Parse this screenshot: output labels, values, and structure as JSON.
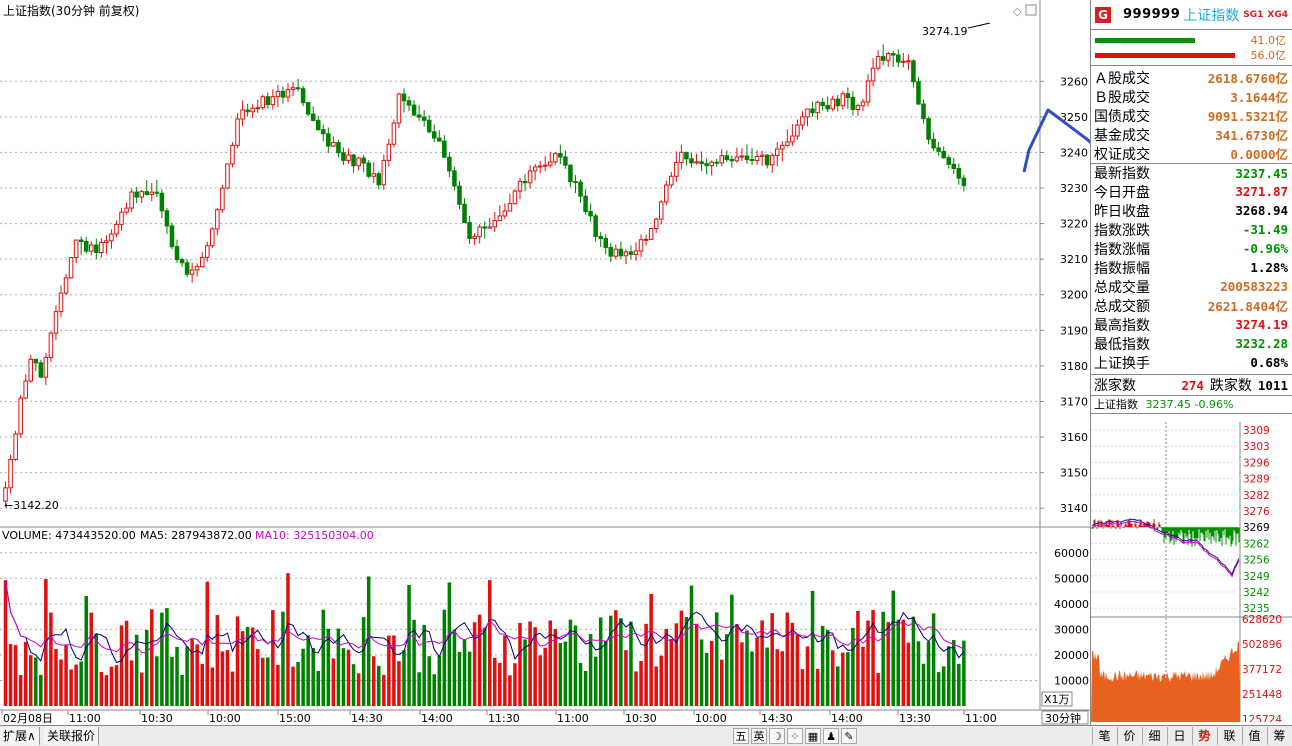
{
  "chart_title": "上证指数(30分钟 前复权)",
  "annotations": {
    "high_label": "3274.19",
    "low_label": "←3142.20"
  },
  "price_axis": [
    "3260",
    "3250",
    "3240",
    "3230",
    "3220",
    "3210",
    "3200",
    "3190",
    "3180",
    "3170",
    "3160",
    "3150",
    "3140"
  ],
  "volume_header": {
    "volume": "VOLUME: 473443520.00",
    "ma5": "MA5: 287943872.00",
    "ma10": "MA10: 325150304.00"
  },
  "volume_axis": [
    "60000",
    "50000",
    "40000",
    "30000",
    "20000",
    "10000"
  ],
  "volume_unit": "X1万",
  "time_axis": [
    "02月08日",
    "11:00",
    "10:30",
    "10:00",
    "15:00",
    "14:30",
    "14:00",
    "11:30",
    "11:00",
    "10:30",
    "10:00",
    "14:30",
    "14:00",
    "13:30",
    "11:00"
  ],
  "period_label": "30分钟",
  "side": {
    "code": "999999",
    "name": "上证指数",
    "badge1": "SG1",
    "badge2": "XG4",
    "buy_vol": "41.0亿",
    "sell_vol": "56.0亿",
    "stats": [
      {
        "label": "Ａ股成交",
        "value": "2618.6760亿",
        "color": "orange"
      },
      {
        "label": "Ｂ股成交",
        "value": "3.1644亿",
        "color": "orange"
      },
      {
        "label": "国债成交",
        "value": "9091.5321亿",
        "color": "orange"
      },
      {
        "label": "基金成交",
        "value": "341.6730亿",
        "color": "orange"
      },
      {
        "label": "权证成交",
        "value": "0.0000亿",
        "color": "orange"
      },
      {
        "label": "最新指数",
        "value": "3237.45",
        "color": "green"
      },
      {
        "label": "今日开盘",
        "value": "3271.87",
        "color": "red"
      },
      {
        "label": "昨日收盘",
        "value": "3268.94",
        "color": "black"
      },
      {
        "label": "指数涨跌",
        "value": "-31.49",
        "color": "green"
      },
      {
        "label": "指数涨幅",
        "value": "-0.96%",
        "color": "green"
      },
      {
        "label": "指数振幅",
        "value": "1.28%",
        "color": "black"
      },
      {
        "label": "总成交量",
        "value": "200583223",
        "color": "orange"
      },
      {
        "label": "总成交额",
        "value": "2621.8404亿",
        "color": "orange"
      },
      {
        "label": "最高指数",
        "value": "3274.19",
        "color": "red"
      },
      {
        "label": "最低指数",
        "value": "3232.28",
        "color": "green"
      },
      {
        "label": "上证换手",
        "value": "0.68%",
        "color": "black"
      }
    ],
    "up_label": "涨家数",
    "up_count": "274",
    "down_label": "跌家数",
    "down_count": "1011",
    "mini_title": "上证指数",
    "mini_value": "3237.45 -0.96%",
    "mini_axis": [
      "3309",
      "3303",
      "3296",
      "3289",
      "3282",
      "3276",
      "3269",
      "3262",
      "3256",
      "3249",
      "3242",
      "3235"
    ],
    "mini_vol_axis": [
      "628620",
      "502896",
      "377172",
      "251448",
      "125724"
    ]
  },
  "bottom": {
    "left_tabs": [
      "扩展∧",
      "关联报价"
    ],
    "ime": [
      "五",
      "英",
      "☽",
      "⁘",
      "▦",
      "♟",
      "✎"
    ],
    "right_tabs": [
      "笔",
      "价",
      "细",
      "日",
      "势",
      "联",
      "值",
      "筹"
    ]
  },
  "colors": {
    "up": "#e01010",
    "down": "#008000",
    "ma5": "#000080",
    "ma10": "#cc00cc",
    "drawn_line": "#3050c0"
  },
  "chart_data": {
    "type": "candlestick",
    "title": "上证指数(30分钟 前复权)",
    "ylim": [
      3135,
      3282
    ],
    "y_high": 3274.19,
    "y_low": 3142.2,
    "volume_ylim": [
      0,
      65000
    ],
    "volume_unit": "万",
    "last_volume": 473443520,
    "ma5": 287943872,
    "ma10": 325150304
  }
}
